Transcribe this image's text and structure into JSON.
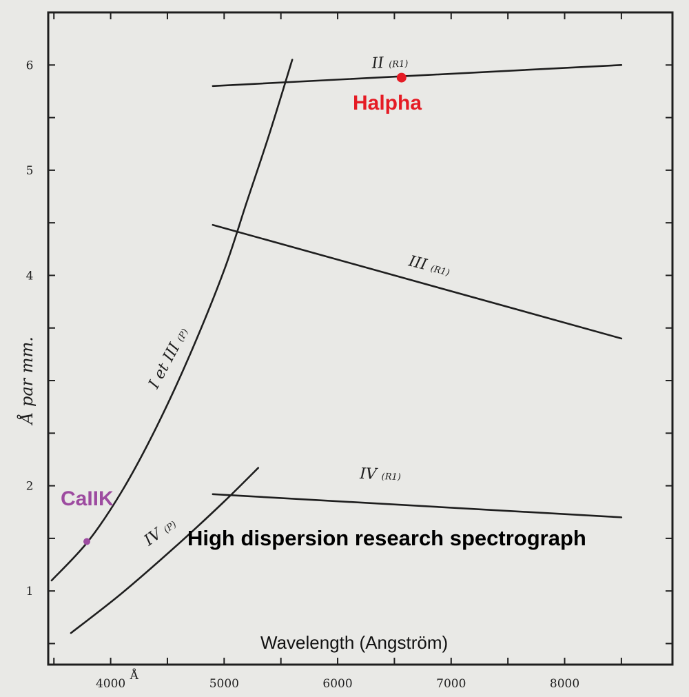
{
  "chart_data": {
    "type": "line",
    "title": "High dispersion research spectrograph",
    "xlabel": "Wavelength (Angström)",
    "ylabel": "Å par mm.",
    "xlim": [
      3450,
      8950
    ],
    "ylim": [
      0.3,
      6.5
    ],
    "x_ticks": [
      {
        "value": 4000,
        "label": "4000"
      },
      {
        "value": 5000,
        "label": "5000"
      },
      {
        "value": 6000,
        "label": "6000"
      },
      {
        "value": 7000,
        "label": "7000"
      },
      {
        "value": 8000,
        "label": "8000"
      }
    ],
    "x_tick_suffix": "Å",
    "y_ticks": [
      {
        "value": 1,
        "label": "1"
      },
      {
        "value": 2,
        "label": "2"
      },
      {
        "value": 4,
        "label": "4"
      },
      {
        "value": 5,
        "label": "5"
      },
      {
        "value": 6,
        "label": "6"
      }
    ],
    "series": [
      {
        "name": "I et III",
        "suffix": "(P)",
        "x": [
          3480,
          3800,
          4100,
          4400,
          4700,
          5000,
          5200,
          5400,
          5600
        ],
        "y": [
          1.1,
          1.47,
          1.95,
          2.55,
          3.25,
          4.05,
          4.7,
          5.35,
          6.05
        ]
      },
      {
        "name": "II",
        "suffix": "(R1)",
        "x": [
          4900,
          8500
        ],
        "y": [
          5.8,
          6.0
        ]
      },
      {
        "name": "III",
        "suffix": "(R1)",
        "x": [
          4900,
          8500
        ],
        "y": [
          4.48,
          3.4
        ]
      },
      {
        "name": "IV",
        "suffix": "(P)",
        "x": [
          3650,
          4100,
          4600,
          5000,
          5300
        ],
        "y": [
          0.6,
          0.98,
          1.45,
          1.85,
          2.17
        ]
      },
      {
        "name": "IV",
        "suffix": "(R1)",
        "x": [
          4900,
          8500
        ],
        "y": [
          1.92,
          1.7
        ]
      }
    ],
    "annotations": [
      {
        "label": "Halpha",
        "x": 6563,
        "y": 5.88,
        "color": "#e51b24"
      },
      {
        "label": "CaIIK",
        "x": 3790,
        "y": 1.47,
        "color": "#9d4ba0"
      }
    ]
  },
  "colors": {
    "background": "#e9e9e6",
    "ink": "#1e1e1e"
  }
}
